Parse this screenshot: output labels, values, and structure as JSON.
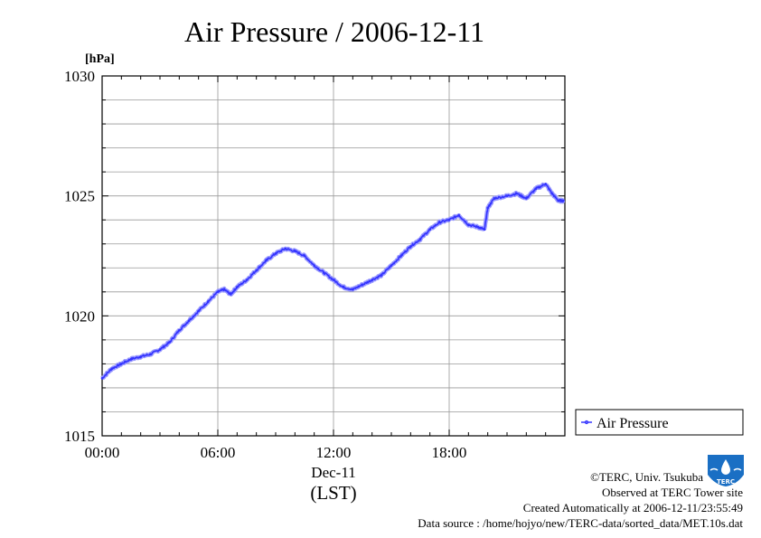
{
  "chart_data": {
    "type": "line",
    "title": "Air Pressure / 2006-12-11",
    "ylabel": "[hPa]",
    "xlabel": "(LST)",
    "date_label": "Dec-11",
    "ylim": [
      1015,
      1030
    ],
    "xlim": [
      "2006-12-11 00:00",
      "2006-12-12 00:00"
    ],
    "y_ticks": [
      "1015",
      "1020",
      "1025",
      "1030"
    ],
    "x_ticks": [
      {
        "label": "00:00",
        "hour": 0
      },
      {
        "label": "06:00",
        "hour": 6
      },
      {
        "label": "12:00",
        "hour": 12
      },
      {
        "label": "18:00",
        "hour": 18
      }
    ],
    "grid": true,
    "legend_position": "bottom-right, outside plot",
    "series": [
      {
        "name": "Air Pressure",
        "color": "#3333ff",
        "x": [
          "00:00",
          "00:30",
          "01:00",
          "01:30",
          "02:00",
          "02:30",
          "03:00",
          "03:30",
          "04:00",
          "04:30",
          "05:00",
          "05:30",
          "06:00",
          "06:20",
          "06:40",
          "07:00",
          "07:30",
          "08:00",
          "08:30",
          "09:00",
          "09:30",
          "10:00",
          "10:30",
          "11:00",
          "11:30",
          "12:00",
          "12:30",
          "13:00",
          "13:30",
          "14:00",
          "14:30",
          "15:00",
          "15:30",
          "16:00",
          "16:30",
          "17:00",
          "17:30",
          "18:00",
          "18:30",
          "19:00",
          "19:30",
          "19:50",
          "20:00",
          "20:20",
          "21:00",
          "21:30",
          "22:00",
          "22:30",
          "23:00",
          "23:20",
          "23:40",
          "23:55"
        ],
        "values": [
          1017.4,
          1017.8,
          1018.0,
          1018.2,
          1018.3,
          1018.4,
          1018.6,
          1018.9,
          1019.4,
          1019.8,
          1020.2,
          1020.6,
          1021.0,
          1021.1,
          1020.9,
          1021.2,
          1021.5,
          1021.9,
          1022.3,
          1022.6,
          1022.8,
          1022.7,
          1022.5,
          1022.1,
          1021.8,
          1021.5,
          1021.2,
          1021.1,
          1021.3,
          1021.5,
          1021.7,
          1022.1,
          1022.5,
          1022.9,
          1023.2,
          1023.6,
          1023.9,
          1024.0,
          1024.2,
          1023.8,
          1023.7,
          1023.6,
          1024.5,
          1024.9,
          1025.0,
          1025.1,
          1024.9,
          1025.3,
          1025.5,
          1025.1,
          1024.8,
          1024.8
        ]
      }
    ]
  },
  "footer": {
    "logo_text": "TERC",
    "copyright": "©TERC, Univ. Tsukuba",
    "observed": "Observed at TERC Tower site",
    "created": "Created Automatically at 2006-12-11/23:55:49",
    "source": "Data source : /home/hojyo/new/TERC-data/sorted_data/MET.10s.dat"
  },
  "colors": {
    "series": "#3333ff",
    "grid": "#999999",
    "logo": "#1a6fc4"
  }
}
